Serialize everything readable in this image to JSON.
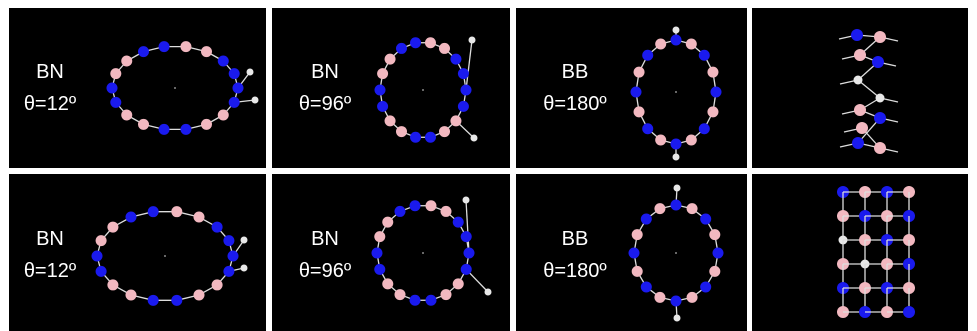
{
  "rows": [
    {
      "panels": [
        {
          "material": "BN",
          "angle": "θ=12º"
        },
        {
          "material": "BN",
          "angle": "θ=96º"
        },
        {
          "material": "BB",
          "angle": "θ=180º"
        }
      ]
    },
    {
      "panels": [
        {
          "material": "BN",
          "angle": "θ=12º"
        },
        {
          "material": "BN",
          "angle": "θ=96º"
        },
        {
          "material": "BB",
          "angle": "θ=180º"
        }
      ]
    }
  ]
}
